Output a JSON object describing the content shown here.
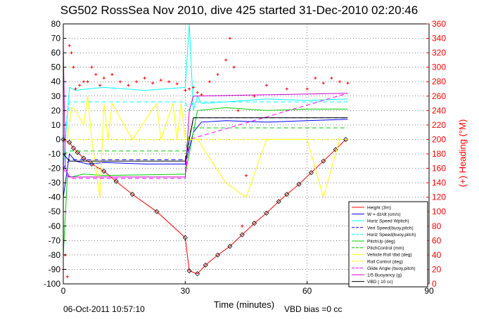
{
  "chart_data": {
    "type": "line",
    "title": "SG502 RossSea Nov 2010, dive 425 started 31-Dec-2010 02:20:46",
    "xlabel": "Time (minutes)",
    "ylabel_right": "(+) Heading (°M)",
    "footer_left": "06-Oct-2011 10:57:10",
    "footer_center": "VBD bias =0 cc",
    "xlim": [
      0,
      90
    ],
    "ylim": [
      -100,
      80
    ],
    "ylim_right": [
      0,
      360
    ],
    "xticks": [
      0,
      30,
      60,
      90
    ],
    "yticks": [
      80,
      70,
      60,
      50,
      40,
      30,
      20,
      10,
      0,
      -10,
      -20,
      -30,
      -40,
      -50,
      -60,
      -70,
      -80,
      -90,
      -100
    ],
    "yticks_right": [
      360,
      340,
      320,
      300,
      280,
      260,
      240,
      220,
      200,
      180,
      160,
      140,
      120,
      100,
      80,
      60,
      40,
      20,
      0
    ],
    "grid": true,
    "legend_position": "bottom-right",
    "legend": [
      {
        "label": "Height (3m)",
        "color": "#ff0000",
        "style": "solid"
      },
      {
        "label": "W = dz/dt (cm/s)",
        "color": "#0000ff",
        "style": "solid"
      },
      {
        "label": "Horiz Speed Wpitch)",
        "color": "#00ffff",
        "style": "solid"
      },
      {
        "label": "Vert Speed(buoy,pitch)",
        "color": "#0000ff",
        "style": "dashed"
      },
      {
        "label": "Horiz Speed(buoy,pitch)",
        "color": "#00ffff",
        "style": "dashed"
      },
      {
        "label": "PitchUp (deg)",
        "color": "#00cc00",
        "style": "solid"
      },
      {
        "label": "PitchControl (mm)",
        "color": "#00cc00",
        "style": "dashed"
      },
      {
        "label": "Vehicle Roll \\tbd (deg)",
        "color": "#ffff00",
        "style": "solid"
      },
      {
        "label": "Roll Control (deg)",
        "color": "#ffff00",
        "style": "dashed"
      },
      {
        "label": "Glide Angle (buoy,pitch)",
        "color": "#ff00ff",
        "style": "dashed"
      },
      {
        "label": "1/5 Buoyancy (g)",
        "color": "#cc00cc",
        "style": "solid"
      },
      {
        "label": "VBD ( 10 cc)",
        "color": "#000000",
        "style": "solid"
      }
    ],
    "series": [
      {
        "name": "Height (3m)",
        "color": "#ff0000",
        "marker": "diamond",
        "x": [
          0,
          1.5,
          2.5,
          3.5,
          5,
          7,
          10,
          13,
          17,
          23,
          30,
          31,
          33,
          35,
          38,
          41,
          44,
          47,
          50,
          53,
          55,
          58,
          61,
          64,
          67,
          69.5
        ],
        "y": [
          0,
          -2,
          -6,
          -9,
          -13,
          -17,
          -22,
          -29,
          -38,
          -50,
          -68,
          -91,
          -93,
          -87,
          -80,
          -74,
          -66,
          -58,
          -51,
          -43,
          -38,
          -31,
          -23,
          -15,
          -7,
          0
        ]
      },
      {
        "name": "W = dz/dt (cm/s)",
        "color": "#0000ff",
        "x": [
          0,
          1.5,
          3,
          6,
          10,
          20,
          30,
          32,
          34,
          40,
          50,
          60,
          70
        ],
        "y": [
          -40,
          -10,
          -15,
          -17,
          -16,
          -17,
          -17,
          5,
          12,
          13,
          12,
          13,
          14
        ]
      },
      {
        "name": "Horiz Speed Wpitch)",
        "color": "#00ffff",
        "x": [
          0,
          1.5,
          3,
          6,
          10,
          20,
          30,
          31,
          32,
          33,
          34,
          40,
          50,
          60,
          70
        ],
        "y": [
          -20,
          36,
          34,
          35,
          36,
          34,
          36,
          80,
          20,
          30,
          25,
          26,
          28,
          27,
          28
        ]
      },
      {
        "name": "Vert Speed(buoy,pitch)",
        "color": "#0000ff",
        "dashed": true,
        "x": [
          0,
          1.5,
          30,
          31,
          32,
          70
        ],
        "y": [
          -20,
          -14,
          -14,
          0,
          15,
          15
        ]
      },
      {
        "name": "Horiz Speed(buoy,pitch)",
        "color": "#00ffff",
        "dashed": true,
        "x": [
          0,
          1.5,
          30,
          31,
          32,
          70
        ],
        "y": [
          0,
          26,
          26,
          20,
          26,
          26
        ]
      },
      {
        "name": "PitchUp (deg)",
        "color": "#00cc00",
        "x": [
          0,
          1,
          2,
          5,
          10,
          30,
          31,
          33,
          40,
          50,
          60,
          70
        ],
        "y": [
          -80,
          -25,
          -26,
          -24,
          -25,
          -24,
          -10,
          20,
          22,
          20,
          21,
          21
        ]
      },
      {
        "name": "PitchControl (mm)",
        "color": "#00cc00",
        "dashed": true,
        "x": [
          0,
          1.5,
          30,
          31.5,
          70
        ],
        "y": [
          -10,
          -8,
          -8,
          8,
          8
        ]
      },
      {
        "name": "Vehicle Roll \\tbd (deg)",
        "color": "#ffff00",
        "x": [
          1,
          2,
          3,
          5,
          6,
          7,
          9,
          10,
          11,
          12,
          17,
          23,
          24,
          27,
          28,
          29,
          30,
          33,
          40,
          45,
          50,
          60,
          64,
          68
        ],
        "y": [
          0,
          22,
          20,
          10,
          30,
          0,
          -40,
          25,
          0,
          25,
          0,
          25,
          0,
          25,
          0,
          25,
          0,
          0,
          -30,
          -40,
          0,
          0,
          -40,
          0
        ]
      },
      {
        "name": "Roll Control (deg)",
        "color": "#ffff00",
        "dashed": true,
        "x": [
          0,
          70
        ],
        "y": [
          0,
          0
        ]
      },
      {
        "name": "Glide Angle (buoy,pitch)",
        "color": "#ff00ff",
        "dashed": true,
        "x": [
          0,
          1.5,
          30,
          31,
          70
        ],
        "y": [
          -20,
          -27,
          -27,
          0,
          32
        ]
      },
      {
        "name": "1/5 Buoyancy (g)",
        "color": "#cc00cc",
        "x": [
          0,
          0.5,
          1.5,
          30,
          31,
          32,
          70
        ],
        "y": [
          65,
          -20,
          -26,
          -26,
          20,
          30,
          32
        ]
      },
      {
        "name": "VBD ( 10 cc)",
        "color": "#000000",
        "x": [
          0,
          1.5,
          30,
          32,
          70
        ],
        "y": [
          -10,
          -15,
          -15,
          15,
          15
        ]
      },
      {
        "name": "Heading",
        "color": "#ff0000",
        "axis": "right",
        "marker": "plus",
        "x": [
          0,
          0.5,
          1,
          1.5,
          2,
          2.5,
          3,
          4,
          5,
          6,
          7,
          8,
          9,
          10,
          12,
          14,
          16,
          18,
          20,
          22,
          24,
          26,
          28,
          30,
          31,
          32,
          33,
          34,
          36,
          38,
          40,
          41,
          42,
          43,
          44,
          45,
          47,
          50,
          55,
          60,
          62,
          64,
          66,
          68,
          70
        ],
        "y": [
          20,
          40,
          10,
          330,
          320,
          300,
          270,
          275,
          280,
          280,
          300,
          290,
          275,
          285,
          290,
          280,
          275,
          280,
          285,
          278,
          282,
          280,
          277,
          268,
          270,
          272,
          265,
          262,
          280,
          290,
          310,
          340,
          300,
          240,
          80,
          150,
          260,
          275,
          270,
          270,
          285,
          278,
          285,
          280,
          278
        ]
      }
    ]
  }
}
